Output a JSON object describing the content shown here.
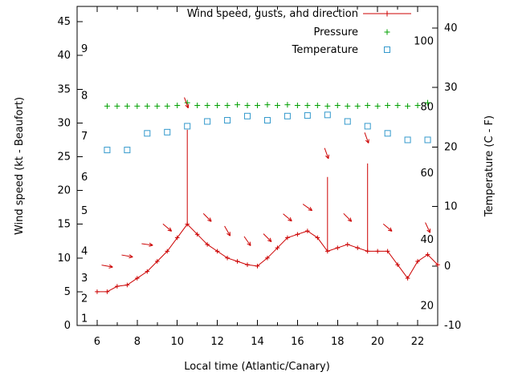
{
  "colors": {
    "wind": "#cc0000",
    "pressure": "#00a000",
    "temperature": "#3399cc",
    "axis": "#000000",
    "background": "#ffffff"
  },
  "chart_data": {
    "type": "line",
    "title": "",
    "xlabel": "Local time (Atlantic/Canary)",
    "ylabel_left": "Wind speed (kt - Beaufort)",
    "ylabel_right": "Temperature (C - F)",
    "x_range": [
      5,
      23
    ],
    "x_ticks": [
      6,
      8,
      10,
      12,
      14,
      16,
      18,
      20,
      22
    ],
    "x_minor_step": 1,
    "y_left_range": [
      0,
      47.3
    ],
    "y_left_ticks": [
      0,
      5,
      10,
      15,
      20,
      25,
      30,
      35,
      40,
      45
    ],
    "y_right_range": [
      -10,
      43.6
    ],
    "y_right_ticks": [
      -10,
      0,
      10,
      20,
      30,
      40
    ],
    "grid": false,
    "legend_position": "top-right-inside",
    "beaufort_labels": [
      {
        "label": "1",
        "kt": 1
      },
      {
        "label": "2",
        "kt": 4
      },
      {
        "label": "3",
        "kt": 7
      },
      {
        "label": "4",
        "kt": 11
      },
      {
        "label": "5",
        "kt": 17
      },
      {
        "label": "6",
        "kt": 22
      },
      {
        "label": "7",
        "kt": 28
      },
      {
        "label": "8",
        "kt": 34
      },
      {
        "label": "9",
        "kt": 41
      }
    ],
    "fahrenheit_labels": [
      {
        "label": "20",
        "c": -6.7
      },
      {
        "label": "40",
        "c": 4.4
      },
      {
        "label": "60",
        "c": 15.6
      },
      {
        "label": "80",
        "c": 26.7
      },
      {
        "label": "100",
        "c": 37.8
      }
    ],
    "legend": [
      {
        "label": "Wind speed, gusts, and direction",
        "marker": "line-plus",
        "color": "#cc0000"
      },
      {
        "label": "Pressure",
        "marker": "plus",
        "color": "#00a000"
      },
      {
        "label": "Temperature",
        "marker": "square",
        "color": "#3399cc"
      }
    ],
    "wind": {
      "x": [
        6.0,
        6.5,
        7.0,
        7.5,
        8.0,
        8.5,
        9.0,
        9.5,
        10.0,
        10.5,
        11.0,
        11.5,
        12.0,
        12.5,
        13.0,
        13.5,
        14.0,
        14.5,
        15.0,
        15.5,
        16.0,
        16.5,
        17.0,
        17.5,
        18.0,
        18.5,
        19.0,
        19.5,
        20.0,
        20.5,
        21.0,
        21.5,
        22.0,
        22.5,
        23.0
      ],
      "kt": [
        5.0,
        5.0,
        5.8,
        6.0,
        7.0,
        8.0,
        9.5,
        11.0,
        13.0,
        15.0,
        13.5,
        12.0,
        11.0,
        10.0,
        9.5,
        9.0,
        8.8,
        10.0,
        11.5,
        13.0,
        13.5,
        14.0,
        13.0,
        11.0,
        11.5,
        12.0,
        11.5,
        11.0,
        11.0,
        11.0,
        9.0,
        7.0,
        9.5,
        10.5,
        9.0
      ]
    },
    "gusts": [
      {
        "x": 10.5,
        "from": 15.0,
        "to": 29.0
      },
      {
        "x": 17.5,
        "from": 11.0,
        "to": 22.0
      },
      {
        "x": 19.5,
        "from": 11.0,
        "to": 24.0
      }
    ],
    "arrows": [
      {
        "x": 6.5,
        "kt": 8.8,
        "angle": 10
      },
      {
        "x": 7.5,
        "kt": 10.3,
        "angle": 10
      },
      {
        "x": 8.5,
        "kt": 12.0,
        "angle": 8
      },
      {
        "x": 9.5,
        "kt": 14.5,
        "angle": 40
      },
      {
        "x": 10.45,
        "kt": 33.0,
        "angle": 70
      },
      {
        "x": 11.5,
        "kt": 16.0,
        "angle": 45
      },
      {
        "x": 12.5,
        "kt": 14.0,
        "angle": 60
      },
      {
        "x": 13.5,
        "kt": 12.5,
        "angle": 55
      },
      {
        "x": 14.5,
        "kt": 13.0,
        "angle": 45
      },
      {
        "x": 15.5,
        "kt": 16.0,
        "angle": 40
      },
      {
        "x": 16.5,
        "kt": 17.5,
        "angle": 35
      },
      {
        "x": 17.45,
        "kt": 25.5,
        "angle": 70
      },
      {
        "x": 18.5,
        "kt": 16.0,
        "angle": 45
      },
      {
        "x": 19.45,
        "kt": 27.8,
        "angle": 70
      },
      {
        "x": 20.5,
        "kt": 14.5,
        "angle": 40
      },
      {
        "x": 22.5,
        "kt": 14.5,
        "angle": 65
      }
    ],
    "pressure": {
      "x": [
        6.5,
        7.0,
        7.5,
        8.0,
        8.5,
        9.0,
        9.5,
        10.0,
        10.5,
        11.0,
        11.5,
        12.0,
        12.5,
        13.0,
        13.5,
        14.0,
        14.5,
        15.0,
        15.5,
        16.0,
        16.5,
        17.0,
        17.5,
        18.0,
        18.5,
        19.0,
        19.5,
        20.0,
        20.5,
        21.0,
        21.5,
        22.0,
        22.5
      ],
      "kt": [
        32.5,
        32.5,
        32.5,
        32.5,
        32.5,
        32.5,
        32.5,
        32.6,
        33.0,
        32.6,
        32.6,
        32.6,
        32.6,
        32.7,
        32.6,
        32.6,
        32.7,
        32.6,
        32.7,
        32.6,
        32.6,
        32.6,
        32.5,
        32.6,
        32.5,
        32.5,
        32.6,
        32.5,
        32.6,
        32.6,
        32.5,
        32.6,
        33.0
      ]
    },
    "temperature": {
      "x": [
        6.5,
        7.5,
        8.5,
        9.5,
        10.5,
        11.5,
        12.5,
        13.5,
        14.5,
        15.5,
        16.5,
        17.5,
        18.5,
        19.5,
        20.5,
        21.5,
        22.5
      ],
      "c": [
        19.5,
        19.5,
        22.3,
        22.5,
        23.5,
        24.3,
        24.5,
        25.2,
        24.5,
        25.2,
        25.3,
        25.4,
        24.3,
        23.5,
        22.3,
        21.2,
        21.2
      ]
    }
  }
}
